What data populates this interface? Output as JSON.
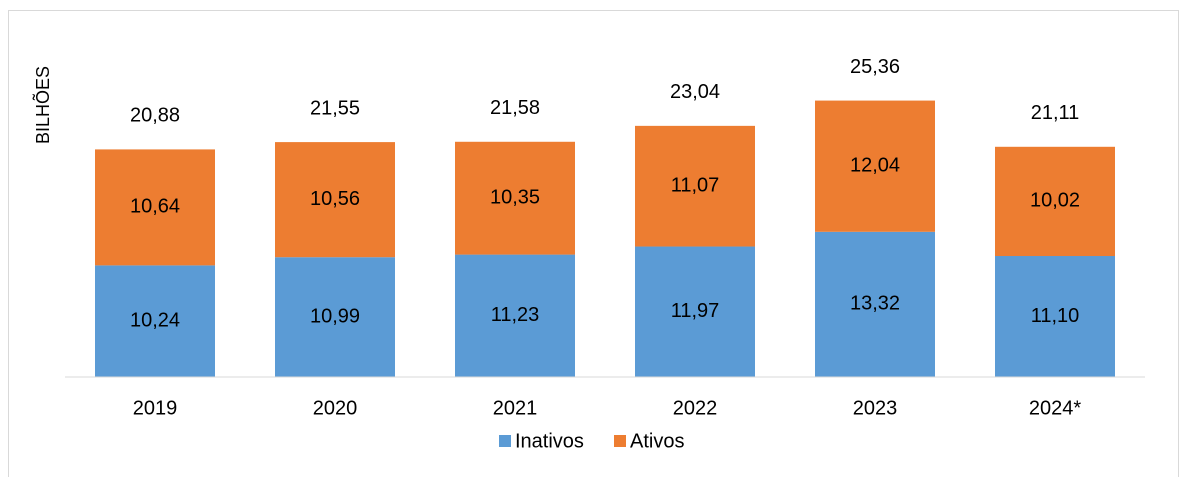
{
  "chart_data": {
    "type": "stacked_bar",
    "y_label": "BILHÕES",
    "categories": [
      "2019",
      "2020",
      "2021",
      "2022",
      "2023",
      "2024*"
    ],
    "series": [
      {
        "name": "Inativos",
        "color": "#5b9bd5",
        "values": [
          10.24,
          10.99,
          11.23,
          11.97,
          13.32,
          11.1
        ],
        "value_labels": [
          "10,24",
          "10,99",
          "11,23",
          "11,97",
          "13,32",
          "11,10"
        ]
      },
      {
        "name": "Ativos",
        "color": "#ed7d31",
        "values": [
          10.64,
          10.56,
          10.35,
          11.07,
          12.04,
          10.02
        ],
        "value_labels": [
          "10,64",
          "10,56",
          "10,35",
          "11,07",
          "12,04",
          "10,02"
        ]
      }
    ],
    "totals": [
      20.88,
      21.55,
      21.58,
      23.04,
      25.36,
      21.11
    ],
    "totals_labels": [
      "20,88",
      "21,55",
      "21,58",
      "23,04",
      "25,36",
      "21,11"
    ],
    "ylim": [
      0,
      30
    ],
    "legend": "bottom"
  }
}
